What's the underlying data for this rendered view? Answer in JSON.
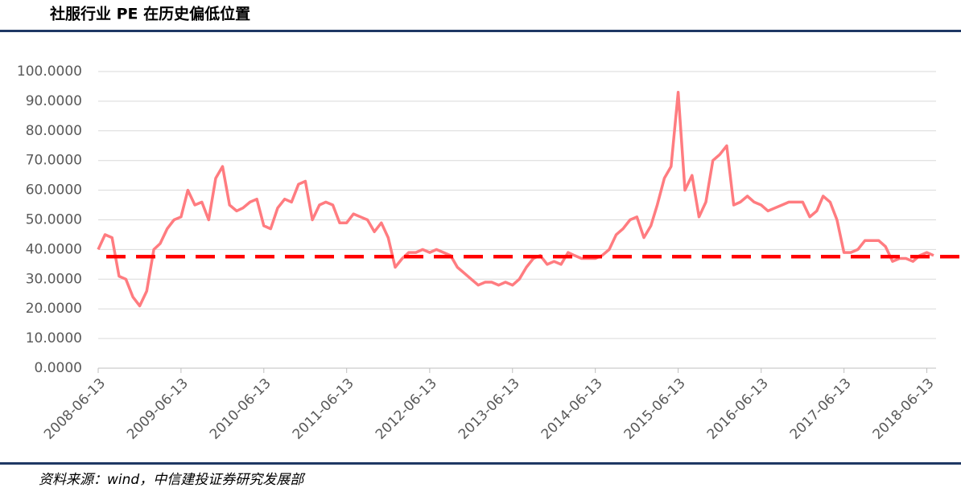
{
  "chart_data": {
    "type": "line",
    "title": "社服行业 PE 在历史偏低位置",
    "source": "资料来源：wind，中信建投证券研究发展部",
    "x": [
      "2008-06-13",
      "2008-07-13",
      "2008-08-13",
      "2008-09-13",
      "2008-10-13",
      "2008-11-13",
      "2008-12-13",
      "2009-01-13",
      "2009-02-13",
      "2009-03-13",
      "2009-04-13",
      "2009-05-13",
      "2009-06-13",
      "2009-07-13",
      "2009-08-13",
      "2009-09-13",
      "2009-10-13",
      "2009-11-13",
      "2009-12-13",
      "2010-01-13",
      "2010-02-13",
      "2010-03-13",
      "2010-04-13",
      "2010-05-13",
      "2010-06-13",
      "2010-07-13",
      "2010-08-13",
      "2010-09-13",
      "2010-10-13",
      "2010-11-13",
      "2010-12-13",
      "2011-01-13",
      "2011-02-13",
      "2011-03-13",
      "2011-04-13",
      "2011-05-13",
      "2011-06-13",
      "2011-07-13",
      "2011-08-13",
      "2011-09-13",
      "2011-10-13",
      "2011-11-13",
      "2011-12-13",
      "2012-01-13",
      "2012-02-13",
      "2012-03-13",
      "2012-04-13",
      "2012-05-13",
      "2012-06-13",
      "2012-07-13",
      "2012-08-13",
      "2012-09-13",
      "2012-10-13",
      "2012-11-13",
      "2012-12-13",
      "2013-01-13",
      "2013-02-13",
      "2013-03-13",
      "2013-04-13",
      "2013-05-13",
      "2013-06-13",
      "2013-07-13",
      "2013-08-13",
      "2013-09-13",
      "2013-10-13",
      "2013-11-13",
      "2013-12-13",
      "2014-01-13",
      "2014-02-13",
      "2014-03-13",
      "2014-04-13",
      "2014-05-13",
      "2014-06-13",
      "2014-07-13",
      "2014-08-13",
      "2014-09-13",
      "2014-10-13",
      "2014-11-13",
      "2014-12-13",
      "2015-01-13",
      "2015-02-13",
      "2015-03-13",
      "2015-04-13",
      "2015-05-13",
      "2015-06-13",
      "2015-07-13",
      "2015-08-13",
      "2015-09-13",
      "2015-10-13",
      "2015-11-13",
      "2015-12-13",
      "2016-01-13",
      "2016-02-13",
      "2016-03-13",
      "2016-04-13",
      "2016-05-13",
      "2016-06-13",
      "2016-07-13",
      "2016-08-13",
      "2016-09-13",
      "2016-10-13",
      "2016-11-13",
      "2016-12-13",
      "2017-01-13",
      "2017-02-13",
      "2017-03-13",
      "2017-04-13",
      "2017-05-13",
      "2017-06-13",
      "2017-07-13",
      "2017-08-13",
      "2017-09-13",
      "2017-10-13",
      "2017-11-13",
      "2017-12-13",
      "2018-01-13",
      "2018-02-13",
      "2018-03-13",
      "2018-04-13",
      "2018-05-13",
      "2018-06-13",
      "2018-07-13"
    ],
    "series": [
      {
        "color": "#ff7c80",
        "values": [
          40,
          45,
          44,
          31,
          30,
          24,
          21,
          26,
          40,
          42,
          47,
          50,
          51,
          60,
          55,
          56,
          50,
          64,
          68,
          55,
          53,
          54,
          56,
          57,
          48,
          47,
          54,
          57,
          56,
          62,
          63,
          50,
          55,
          56,
          55,
          49,
          49,
          52,
          51,
          50,
          46,
          49,
          44,
          34,
          37,
          39,
          39,
          40,
          39,
          40,
          39,
          38,
          34,
          32,
          30,
          28,
          29,
          29,
          28,
          29,
          28,
          30,
          34,
          37,
          38,
          35,
          36,
          35,
          39,
          38,
          37,
          37,
          37,
          38,
          40,
          45,
          47,
          50,
          51,
          44,
          48,
          55,
          64,
          68,
          93,
          60,
          65,
          51,
          56,
          70,
          72,
          75,
          55,
          56,
          58,
          56,
          55,
          53,
          54,
          55,
          56,
          56,
          56,
          51,
          53,
          58,
          56,
          50,
          39,
          39,
          40,
          43,
          43,
          43,
          41,
          36,
          37,
          37,
          36,
          38,
          39,
          38
        ]
      }
    ],
    "reference_line": {
      "value": 37.6,
      "color": "#ff0000"
    },
    "xlim": [
      "2008-06-13",
      "2018-07-13"
    ],
    "xticks": [
      "2008-06-13",
      "2009-06-13",
      "2010-06-13",
      "2011-06-13",
      "2012-06-13",
      "2013-06-13",
      "2014-06-13",
      "2015-06-13",
      "2016-06-13",
      "2017-06-13",
      "2018-06-13"
    ],
    "ylim": [
      0,
      100
    ],
    "yticks": [
      {
        "value": 0,
        "label": "0.0000"
      },
      {
        "value": 10,
        "label": "10.0000"
      },
      {
        "value": 20,
        "label": "20.0000"
      },
      {
        "value": 30,
        "label": "30.0000"
      },
      {
        "value": 40,
        "label": "40.0000"
      },
      {
        "value": 50,
        "label": "50.0000"
      },
      {
        "value": 60,
        "label": "60.0000"
      },
      {
        "value": 70,
        "label": "70.0000"
      },
      {
        "value": 80,
        "label": "80.0000"
      },
      {
        "value": 90,
        "label": "90.0000"
      },
      {
        "value": 100,
        "label": "100.0000"
      }
    ],
    "grid": true
  }
}
